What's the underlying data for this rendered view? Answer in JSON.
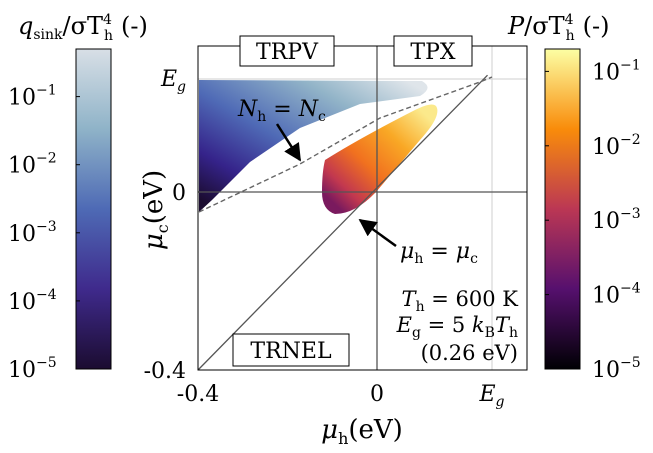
{
  "chart_data": [
    {
      "type": "heatmap",
      "colorbar": {
        "label_main": "q",
        "label_sub": "sink",
        "label_mid": "/σT",
        "label_sup": "4",
        "label_sub2": "h",
        "label_unit": "(-)",
        "ticks": [
          {
            "base": "10",
            "exp": "−1",
            "value": 0.1
          },
          {
            "base": "10",
            "exp": "−2",
            "value": 0.01
          },
          {
            "base": "10",
            "exp": "−3",
            "value": 0.001
          },
          {
            "base": "10",
            "exp": "−4",
            "value": 0.0001
          },
          {
            "base": "10",
            "exp": "−5",
            "value": 1e-05
          }
        ],
        "scale": "log",
        "range": [
          1e-05,
          0.5
        ],
        "colors": [
          "#1b0c30",
          "#3f2a8c",
          "#4e6ab5",
          "#8fb3c8",
          "#d8dfe6"
        ]
      }
    },
    {
      "type": "heatmap",
      "colorbar": {
        "label_main": "P",
        "label_mid": "/σT",
        "label_sup": "4",
        "label_sub2": "h",
        "label_unit": "(-)",
        "ticks": [
          {
            "base": "10",
            "exp": "−1",
            "value": 0.1
          },
          {
            "base": "10",
            "exp": "−2",
            "value": 0.01
          },
          {
            "base": "10",
            "exp": "−3",
            "value": 0.001
          },
          {
            "base": "10",
            "exp": "−4",
            "value": 0.0001
          },
          {
            "base": "10",
            "exp": "−5",
            "value": 1e-05
          }
        ],
        "scale": "log",
        "range": [
          1e-05,
          0.2
        ],
        "colors": [
          "#000004",
          "#56106e",
          "#bb3754",
          "#f98c0a",
          "#fcffa4"
        ]
      }
    },
    {
      "type": "line",
      "xlabel_main": "μ",
      "xlabel_sub": "h",
      "xlabel_unit": "(eV)",
      "ylabel_main": "μ",
      "ylabel_sub": "c",
      "ylabel_unit": "(eV)",
      "x_ticks": [
        "-0.4",
        "0",
        "E"
      ],
      "x_ticks_sub": [
        "",
        "",
        "g"
      ],
      "y_ticks": [
        "E",
        "0",
        "-0.4"
      ],
      "y_ticks_sub": [
        "g",
        "",
        ""
      ],
      "xlim": [
        -0.4,
        0.26
      ],
      "ylim": [
        -0.4,
        0.26
      ],
      "Eg": 0.26,
      "series": [
        {
          "name": "μh = μc",
          "x": [
            -0.4,
            0.26
          ],
          "y": [
            -0.4,
            0.26
          ]
        }
      ],
      "region_labels": [
        "TRPV",
        "TPX",
        "TRNEL"
      ],
      "annotations": {
        "nh_nc": {
          "a": "N",
          "a_sub": "h",
          "eq": " = ",
          "b": "N",
          "b_sub": "c"
        },
        "mu_eq": {
          "a": "μ",
          "a_sub": "h",
          "eq": " = ",
          "b": "μ",
          "b_sub": "c"
        },
        "params": [
          {
            "a": "T",
            "a_sub": "h",
            "rest": " = 600 K"
          },
          {
            "a": "E",
            "a_sub": "g",
            "rest": " = 5 ",
            "c": "k",
            "c_sub": "B",
            "d": "T",
            "d_sub": "h"
          },
          {
            "rest": "(0.26 eV)"
          }
        ]
      }
    }
  ]
}
